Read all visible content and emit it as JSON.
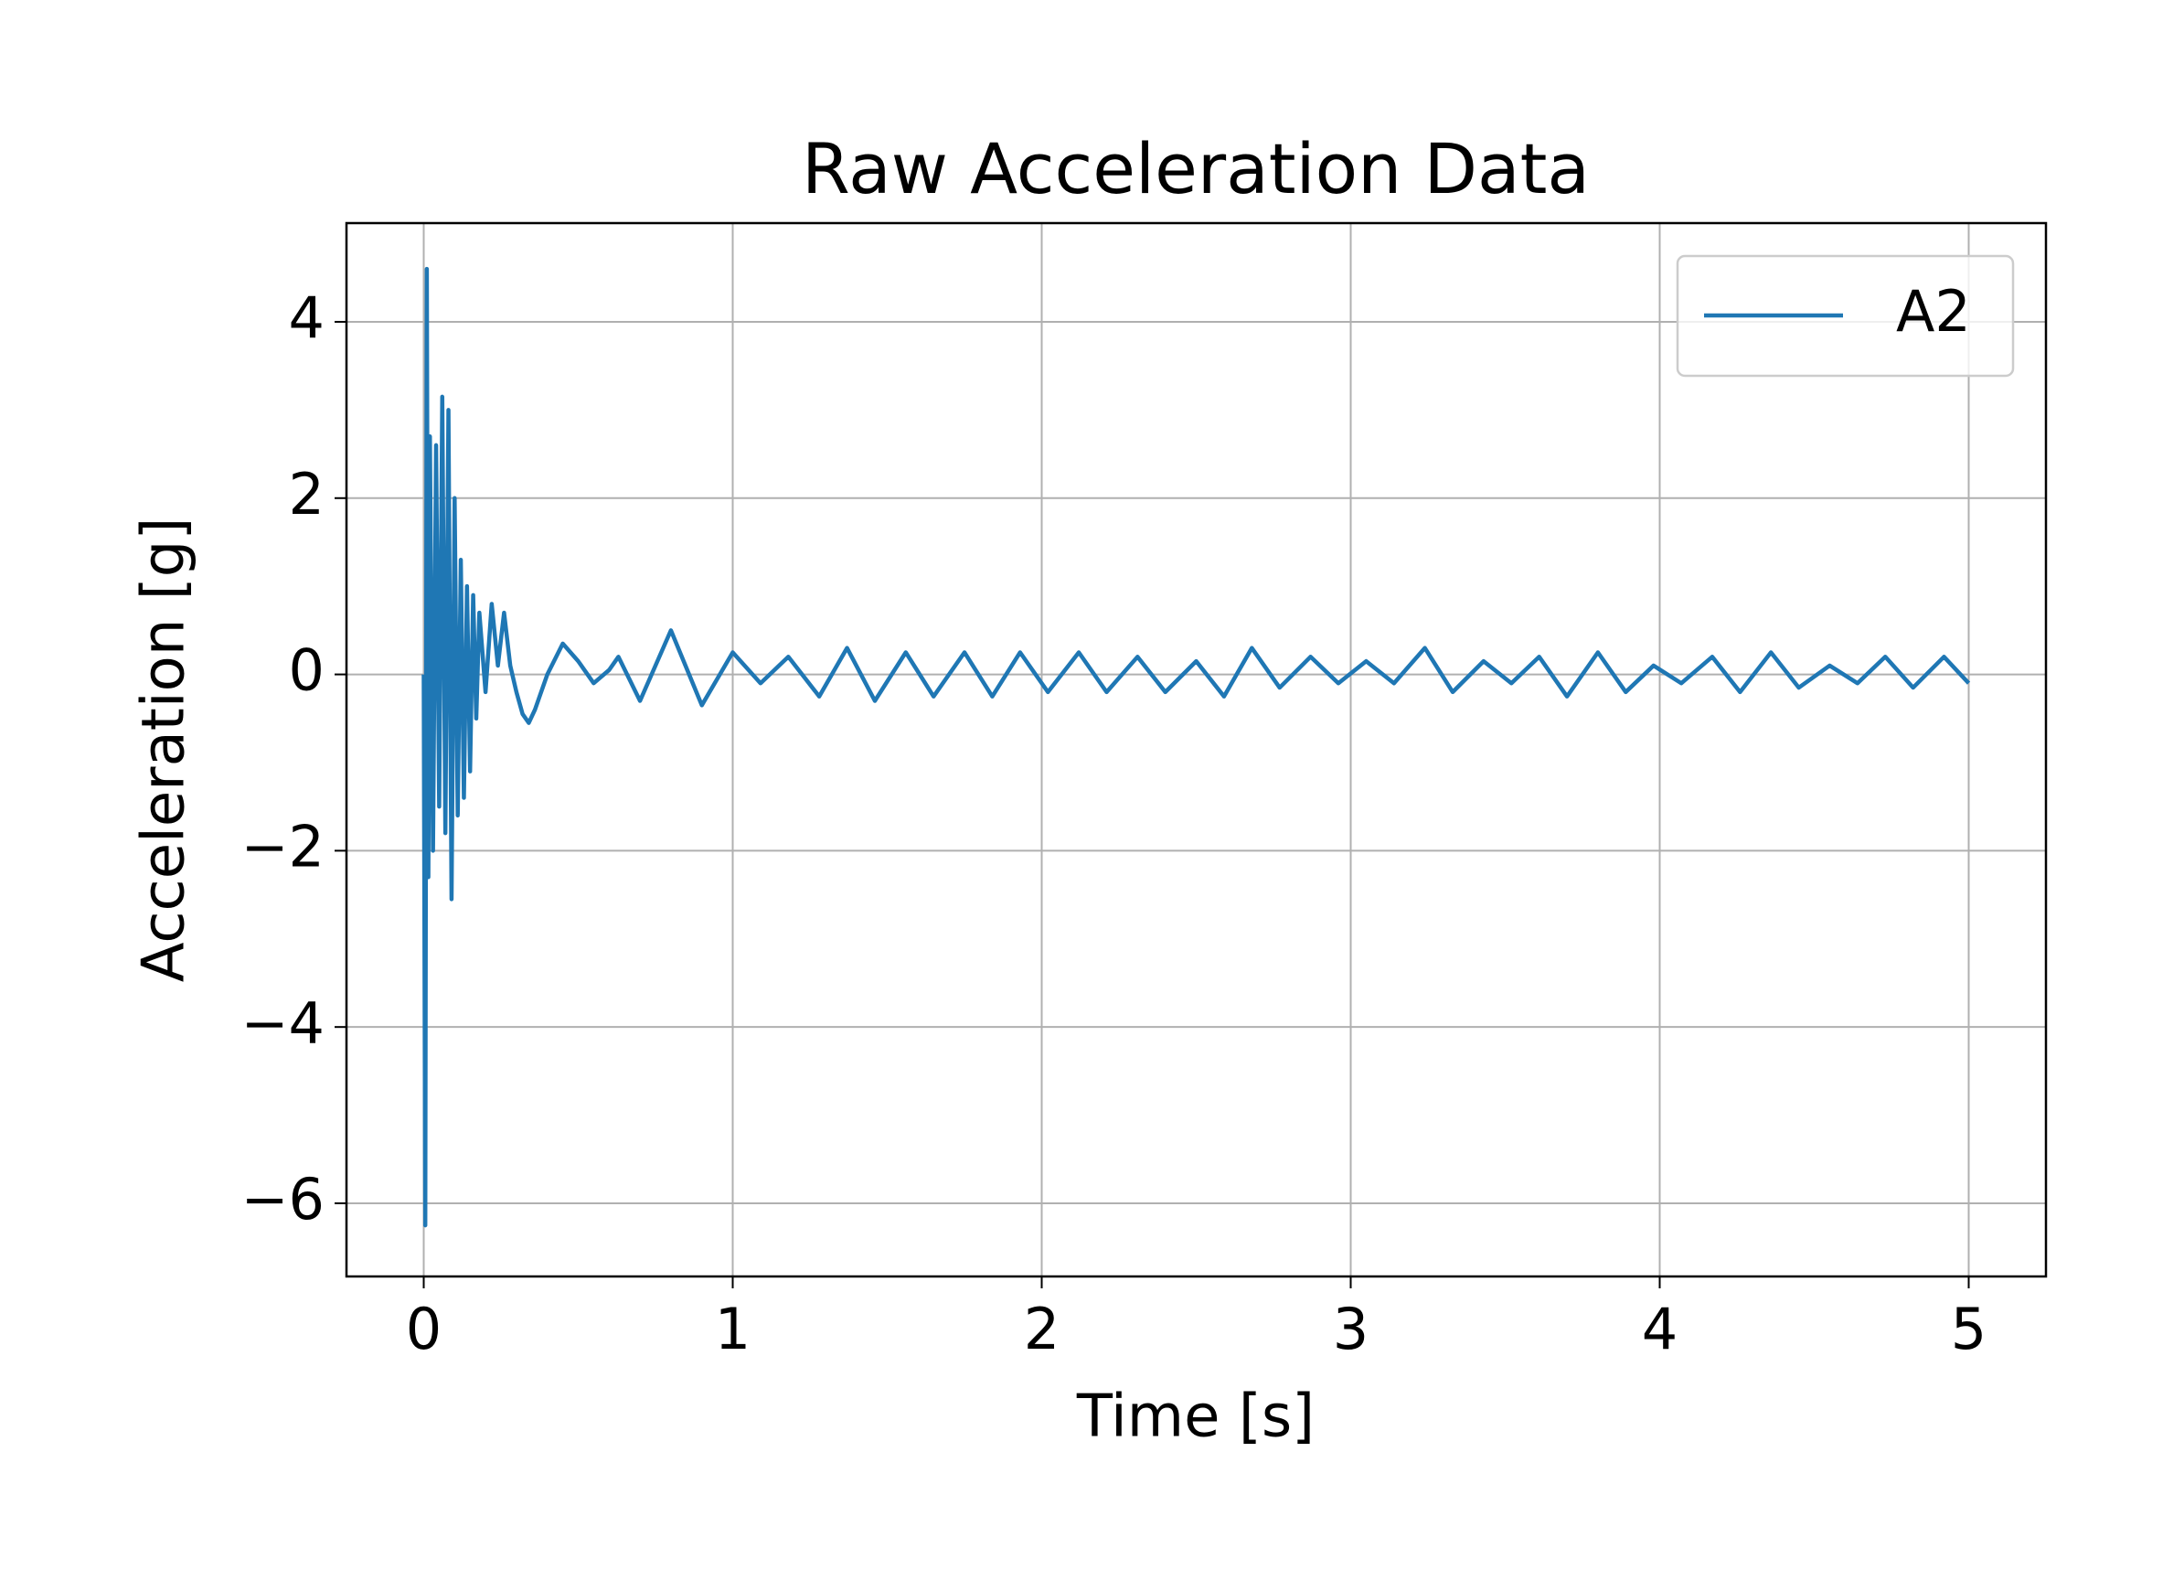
{
  "chart_data": {
    "type": "line",
    "title": "Raw Acceleration Data",
    "xlabel": "Time [s]",
    "ylabel": "Acceleration [g]",
    "x": [
      0,
      0.005,
      0.01,
      0.015,
      0.02,
      0.03,
      0.04,
      0.05,
      0.06,
      0.07,
      0.08,
      0.09,
      0.1,
      0.11,
      0.12,
      0.13,
      0.14,
      0.15,
      0.16,
      0.17,
      0.18,
      0.2,
      0.22,
      0.24,
      0.26,
      0.28,
      0.3,
      0.32,
      0.34,
      0.36,
      0.4,
      0.45,
      0.5,
      0.55,
      0.6,
      0.63,
      0.7,
      0.8,
      0.9,
      1.0,
      1.09,
      1.18,
      1.28,
      1.37,
      1.46,
      1.56,
      1.65,
      1.75,
      1.84,
      1.93,
      2.02,
      2.12,
      2.21,
      2.31,
      2.4,
      2.5,
      2.59,
      2.68,
      2.77,
      2.87,
      2.96,
      3.05,
      3.14,
      3.24,
      3.33,
      3.43,
      3.52,
      3.61,
      3.7,
      3.8,
      3.89,
      3.98,
      4.07,
      4.17,
      4.26,
      4.36,
      4.45,
      4.55,
      4.64,
      4.73,
      4.82,
      4.92,
      5.0
    ],
    "series": [
      {
        "name": "A2",
        "color": "#1f77b4",
        "values": [
          0,
          -6.25,
          4.6,
          -2.3,
          2.7,
          -2.0,
          2.6,
          -1.5,
          3.15,
          -1.8,
          3.0,
          -2.55,
          2.0,
          -1.6,
          1.3,
          -1.4,
          1.0,
          -1.1,
          0.9,
          -0.5,
          0.7,
          -0.2,
          0.8,
          0.1,
          0.7,
          0.1,
          -0.2,
          -0.45,
          -0.55,
          -0.4,
          0.0,
          0.35,
          0.15,
          -0.1,
          0.05,
          0.2,
          -0.3,
          0.5,
          -0.35,
          0.25,
          -0.1,
          0.2,
          -0.25,
          0.3,
          -0.3,
          0.25,
          -0.25,
          0.25,
          -0.25,
          0.25,
          -0.2,
          0.25,
          -0.2,
          0.2,
          -0.2,
          0.15,
          -0.25,
          0.3,
          -0.15,
          0.2,
          -0.1,
          0.15,
          -0.1,
          0.3,
          -0.2,
          0.15,
          -0.1,
          0.2,
          -0.25,
          0.25,
          -0.2,
          0.1,
          -0.1,
          0.2,
          -0.2,
          0.25,
          -0.15,
          0.1,
          -0.1,
          0.2,
          -0.15,
          0.2,
          -0.1
        ]
      }
    ],
    "xlim": [
      -0.25,
      5.25
    ],
    "ylim": [
      -6.83,
      5.12
    ],
    "xticks": [
      0,
      1,
      2,
      3,
      4,
      5
    ],
    "yticks": [
      {
        "value": -6,
        "label": "−6"
      },
      {
        "value": -4,
        "label": "−4"
      },
      {
        "value": -2,
        "label": "−2"
      },
      0,
      2,
      4
    ],
    "grid": true,
    "legend": "upper right"
  }
}
